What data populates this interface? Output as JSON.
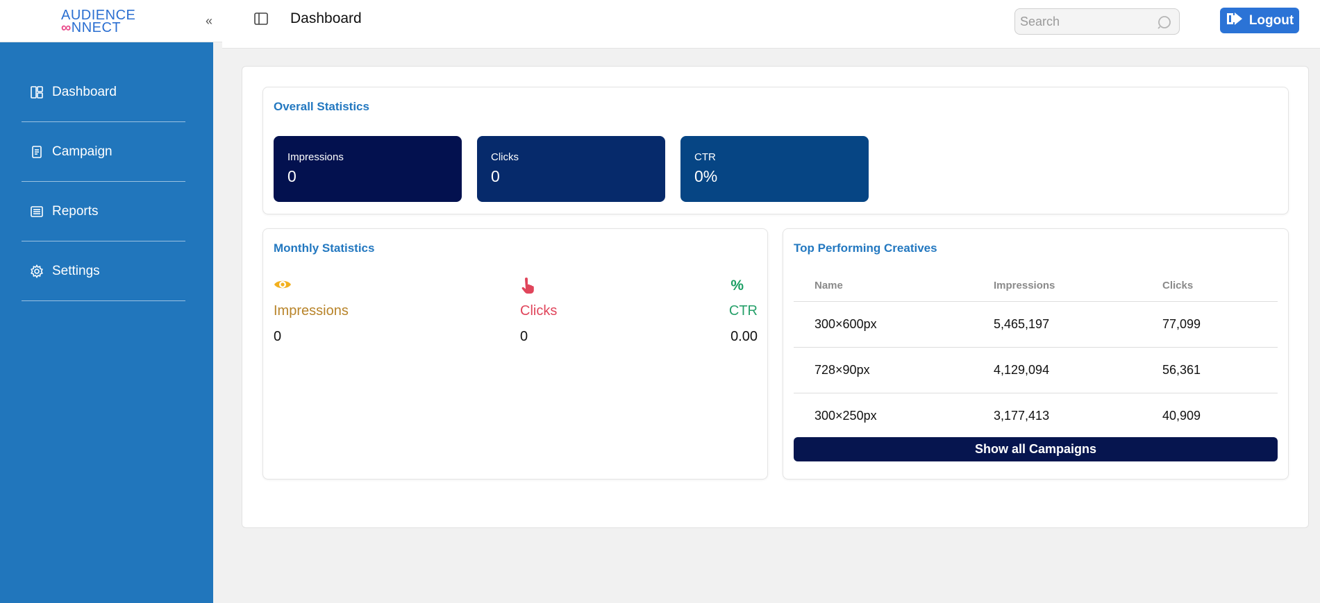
{
  "brand": {
    "logo_line1": "AUDIENCE",
    "logo_line2_prefix": "∞",
    "logo_line2": "NNECT"
  },
  "sidebar": {
    "collapse_glyph": "«",
    "items": [
      {
        "label": "Dashboard",
        "icon": "dashboard-icon"
      },
      {
        "label": "Campaign",
        "icon": "campaign-icon"
      },
      {
        "label": "Reports",
        "icon": "reports-icon"
      },
      {
        "label": "Settings",
        "icon": "settings-icon"
      }
    ]
  },
  "header": {
    "title": "Dashboard",
    "search_placeholder": "Search",
    "logout_label": "Logout"
  },
  "overall": {
    "title": "Overall Statistics",
    "stats": [
      {
        "label": "Impressions",
        "value": "0",
        "color": "#03114f"
      },
      {
        "label": "Clicks",
        "value": "0",
        "color": "#062a6b"
      },
      {
        "label": "CTR",
        "value": "0%",
        "color": "#064584"
      }
    ]
  },
  "monthly": {
    "title": "Monthly Statistics",
    "impressions": {
      "label": "Impressions",
      "value": "0",
      "color": "#b8842a",
      "icon": "eye-icon",
      "icon_color": "#f2b01e"
    },
    "clicks": {
      "label": "Clicks",
      "value": "0",
      "color": "#e0455b",
      "icon": "pointer-hand-icon",
      "icon_color": "#e0455b"
    },
    "ctr": {
      "label": "CTR",
      "value": "0.00",
      "color": "#27a06a",
      "icon": "percent-icon",
      "icon_glyph": "%",
      "icon_color": "#1a9e63"
    }
  },
  "creatives": {
    "title": "Top Performing Creatives",
    "columns": [
      "Name",
      "Impressions",
      "Clicks"
    ],
    "rows": [
      [
        "300×600px",
        "5,465,197",
        "77,099"
      ],
      [
        "728×90px",
        "4,129,094",
        "56,361"
      ],
      [
        "300×250px",
        "3,177,413",
        "40,909"
      ]
    ],
    "show_all_label": "Show all Campaigns"
  },
  "colors": {
    "sidebar": "#2176bc",
    "accent": "#2378c0",
    "logout": "#2b73d6"
  }
}
